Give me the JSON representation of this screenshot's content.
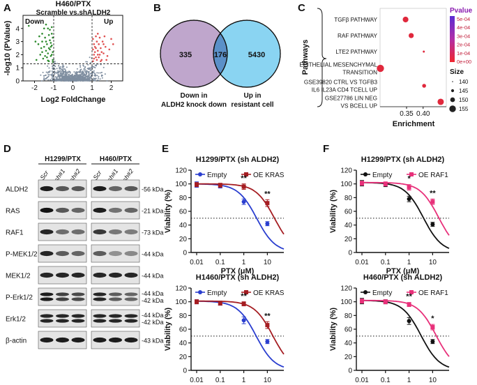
{
  "panel_labels": [
    "A",
    "B",
    "C",
    "D",
    "E",
    "F"
  ],
  "colors": {
    "volcano_down": "#2e8b2e",
    "volcano_up": "#e05050",
    "volcano_ns": "#7f8ea0",
    "venn_left": "#bfa6cc",
    "venn_right": "#8ad4f2",
    "venn_overlap": "#5b90c8",
    "empty_blue": "#2a3ecf",
    "oe_kras": "#a51d22",
    "empty_black": "#111111",
    "oe_raf1": "#e8307a"
  },
  "chart_data": [
    {
      "id": "A",
      "type": "scatter",
      "title": "H460/PTX",
      "subtitle": "Scramble vs.shALDH2",
      "xlabel": "Log2 FoldChange",
      "ylabel": "-log10 (PValue)",
      "xlim": [
        -2.6,
        2.6
      ],
      "ylim": [
        0,
        5
      ],
      "xticks": [
        "-2",
        "-1",
        "0",
        "1",
        "2"
      ],
      "yticks": [
        "0",
        "1",
        "2",
        "3",
        "4"
      ],
      "region_labels": {
        "down": "Down",
        "up": "Up"
      },
      "thresholds": {
        "fc": [
          -1,
          1
        ],
        "p": 1.3
      },
      "down_points": [
        [
          -1.05,
          1.6
        ],
        [
          -1.1,
          2.0
        ],
        [
          -1.2,
          2.4
        ],
        [
          -1.3,
          2.1
        ],
        [
          -1.15,
          2.9
        ],
        [
          -1.4,
          3.0
        ],
        [
          -1.25,
          3.5
        ],
        [
          -1.5,
          2.6
        ],
        [
          -1.35,
          1.8
        ],
        [
          -1.6,
          2.2
        ],
        [
          -1.2,
          3.9
        ],
        [
          -1.1,
          2.7
        ],
        [
          -1.45,
          3.3
        ],
        [
          -1.3,
          4.0
        ],
        [
          -1.6,
          3.6
        ],
        [
          -1.05,
          3.3
        ],
        [
          -1.7,
          2.0
        ],
        [
          -1.25,
          1.5
        ],
        [
          -1.55,
          1.7
        ],
        [
          -1.4,
          4.3
        ],
        [
          -1.15,
          1.9
        ],
        [
          -1.8,
          2.8
        ],
        [
          -1.35,
          2.8
        ],
        [
          -1.1,
          4.1
        ],
        [
          -1.95,
          3.0
        ],
        [
          -1.5,
          4.0
        ],
        [
          -1.2,
          3.1
        ],
        [
          -1.05,
          2.2
        ],
        [
          -1.3,
          1.55
        ],
        [
          -1.65,
          2.5
        ],
        [
          -1.1,
          3.6
        ],
        [
          -1.45,
          1.9
        ],
        [
          -1.75,
          3.4
        ],
        [
          -1.25,
          2.5
        ],
        [
          -2.3,
          4.2
        ],
        [
          -1.9,
          1.6
        ],
        [
          -1.05,
          1.45
        ],
        [
          -1.4,
          2.3
        ],
        [
          -1.15,
          2.6
        ],
        [
          -1.6,
          3.0
        ]
      ],
      "up_points": [
        [
          1.05,
          1.5
        ],
        [
          1.1,
          2.0
        ],
        [
          1.2,
          1.8
        ],
        [
          1.15,
          2.6
        ],
        [
          1.3,
          2.3
        ],
        [
          1.25,
          3.0
        ],
        [
          1.4,
          2.0
        ],
        [
          1.35,
          2.8
        ],
        [
          1.5,
          1.6
        ],
        [
          1.2,
          3.4
        ],
        [
          1.45,
          2.5
        ],
        [
          1.6,
          2.1
        ],
        [
          1.1,
          2.8
        ],
        [
          1.3,
          3.6
        ],
        [
          1.55,
          3.0
        ],
        [
          1.05,
          3.2
        ],
        [
          1.7,
          2.6
        ],
        [
          1.25,
          1.6
        ],
        [
          1.4,
          3.3
        ],
        [
          1.8,
          1.9
        ],
        [
          1.15,
          2.2
        ],
        [
          1.35,
          1.8
        ],
        [
          1.65,
          3.4
        ],
        [
          1.9,
          2.4
        ],
        [
          1.5,
          2.2
        ],
        [
          1.1,
          1.7
        ],
        [
          1.3,
          2.0
        ],
        [
          2.1,
          2.8
        ],
        [
          1.75,
          1.6
        ],
        [
          1.2,
          2.5
        ],
        [
          1.45,
          1.5
        ],
        [
          1.05,
          2.4
        ],
        [
          1.6,
          2.8
        ],
        [
          2.0,
          3.2
        ]
      ]
    },
    {
      "id": "B",
      "type": "venn",
      "sets": [
        {
          "label_line1": "Down in",
          "label_line2": "ALDH2 knock down",
          "only": 335
        },
        {
          "label_line1": "Up in",
          "label_line2": "resistant cell",
          "only": 5430
        }
      ],
      "overlap": 176
    },
    {
      "id": "C",
      "type": "scatter",
      "ylabel": "Pathways",
      "xlabel": "Enrichment",
      "xlim": [
        0.27,
        0.47
      ],
      "xticks": [
        0.35,
        0.4
      ],
      "xtick_labels": [
        "0.35",
        "0.40"
      ],
      "pathways": [
        {
          "label": [
            "TGFβ PATHWAY"
          ],
          "enrichment": 0.347,
          "pvalue": 1e-05,
          "size": 152
        },
        {
          "label": [
            "RAF PATHWAY"
          ],
          "enrichment": 0.364,
          "pvalue": 1e-05,
          "size": 150
        },
        {
          "label": [
            "LTE2 PATHWAY"
          ],
          "enrichment": 0.402,
          "pvalue": 1e-05,
          "size": 140
        },
        {
          "label": [
            "EPITHELIAL MESENCHYMAL",
            "TRANSITION"
          ],
          "enrichment": 0.271,
          "pvalue": 2e-05,
          "size": 157
        },
        {
          "label": [
            "GSE39820 CTRL VS TGFB3",
            "IL6 IL23A CD4 TCELL UP"
          ],
          "enrichment": 0.403,
          "pvalue": 1e-05,
          "size": 146
        },
        {
          "label": [
            "GSE27786 LIN NEG",
            "VS BCELL UP"
          ],
          "enrichment": 0.453,
          "pvalue": 2e-05,
          "size": 154
        }
      ],
      "legend_pvalue": {
        "title": "Pvalue",
        "labels": [
          "5e-04",
          "4e-04",
          "3e-04",
          "2e-04",
          "1e-04",
          "0e+00"
        ]
      },
      "legend_size": {
        "title": "Size",
        "values": [
          140,
          145,
          150,
          155
        ]
      }
    },
    {
      "id": "D",
      "type": "blot",
      "groups": [
        "H1299/PTX",
        "H460/PTX"
      ],
      "lanes": [
        "Scr",
        "sh#1",
        "sh#2"
      ],
      "rows": [
        {
          "name": "ALDH2",
          "markers": [
            "56 kDa"
          ],
          "left": [
            0.95,
            0.62,
            0.62
          ],
          "right": [
            0.95,
            0.55,
            0.62
          ]
        },
        {
          "name": "RAS",
          "markers": [
            "21 kDa"
          ],
          "left": [
            1.0,
            0.62,
            0.55
          ],
          "right": [
            0.95,
            0.48,
            0.55
          ]
        },
        {
          "name": "RAF1",
          "markers": [
            "73 kDa"
          ],
          "left": [
            0.9,
            0.5,
            0.5
          ],
          "right": [
            0.8,
            0.45,
            0.42
          ]
        },
        {
          "name": "P-MEK1/2",
          "markers": [
            "44 kDa"
          ],
          "left": [
            0.9,
            0.6,
            0.55
          ],
          "right": [
            0.6,
            0.3,
            0.35
          ]
        },
        {
          "name": "MEK1/2",
          "markers": [
            "44 kDa"
          ],
          "left": [
            0.9,
            0.9,
            0.9
          ],
          "right": [
            0.9,
            0.9,
            0.9
          ]
        },
        {
          "name": "P-Erk1/2",
          "markers": [
            "44 kDa",
            "42 kDa"
          ],
          "left": [
            0.95,
            0.75,
            0.7
          ],
          "right": [
            0.9,
            0.6,
            0.55
          ],
          "double": true
        },
        {
          "name": "Erk1/2",
          "markers": [
            "44 kDa",
            "42 kDa"
          ],
          "left": [
            0.9,
            0.9,
            0.9
          ],
          "right": [
            0.9,
            0.9,
            0.9
          ],
          "double": true
        },
        {
          "name": "β-actin",
          "markers": [
            "43 kDa"
          ],
          "left": [
            0.95,
            0.95,
            0.95
          ],
          "right": [
            0.95,
            0.95,
            0.95
          ]
        }
      ]
    },
    {
      "id": "E-top",
      "type": "line",
      "title": "H1299/PTX (sh ALDH2)",
      "xlabel": "PTX (μM)",
      "ylabel": "Viability (%)",
      "x": [
        0.01,
        0.1,
        1,
        10
      ],
      "xtick_labels": [
        "0.01",
        "0.1",
        "1",
        "10"
      ],
      "ylim": [
        0,
        120
      ],
      "yticks": [
        "0",
        "20",
        "40",
        "60",
        "80",
        "100",
        "120"
      ],
      "reference_y": 50,
      "series": [
        {
          "name": "Empty",
          "color": "#2a3ecf",
          "values": [
            99,
            97,
            74,
            42
          ],
          "err": [
            4,
            3,
            4,
            3
          ],
          "ec50": 3.5
        },
        {
          "name": "OE KRAS",
          "color": "#a51d22",
          "values": [
            99,
            98,
            96,
            72
          ],
          "err": [
            3,
            3,
            4,
            5
          ],
          "ec50": 20
        }
      ],
      "significance": [
        {
          "x": 1,
          "y": 105,
          "label": "**"
        },
        {
          "x": 10,
          "y": 82,
          "label": "**"
        }
      ]
    },
    {
      "id": "E-bottom",
      "type": "line",
      "title": "H1460/PTX (sh ALDH2)",
      "xlabel": "PTX (μM)",
      "ylabel": "Viability (%)",
      "x": [
        0.01,
        0.1,
        1,
        10
      ],
      "xtick_labels": [
        "0.01",
        "0.1",
        "1",
        "10"
      ],
      "ylim": [
        0,
        120
      ],
      "yticks": [
        "0",
        "20",
        "40",
        "60",
        "80",
        "100",
        "120"
      ],
      "reference_y": 50,
      "series": [
        {
          "name": "Empty",
          "color": "#2a3ecf",
          "values": [
            100,
            98,
            73,
            42
          ],
          "err": [
            3,
            3,
            5,
            3
          ],
          "ec50": 3.3
        },
        {
          "name": "OE KRAS",
          "color": "#a51d22",
          "values": [
            100,
            98,
            97,
            66
          ],
          "err": [
            3,
            3,
            3,
            5
          ],
          "ec50": 17
        }
      ],
      "significance": [
        {
          "x": 1,
          "y": 105,
          "label": "**"
        },
        {
          "x": 10,
          "y": 76,
          "label": "**"
        }
      ]
    },
    {
      "id": "F-top",
      "type": "line",
      "title": "H1299/PTX (sh ALDH2)",
      "xlabel": "PTX (μM)",
      "ylabel": "Viability (%)",
      "x": [
        0.01,
        0.1,
        1,
        10
      ],
      "xtick_labels": [
        "0.01",
        "0.1",
        "1",
        "10"
      ],
      "ylim": [
        0,
        120
      ],
      "yticks": [
        "0",
        "20",
        "40",
        "60",
        "80",
        "100",
        "120"
      ],
      "reference_y": 50,
      "series": [
        {
          "name": "Empty",
          "color": "#111111",
          "values": [
            101,
            99,
            78,
            41
          ],
          "err": [
            4,
            3,
            4,
            3
          ],
          "ec50": 4.0
        },
        {
          "name": "OE RAF1",
          "color": "#e8307a",
          "values": [
            101,
            100,
            95,
            74
          ],
          "err": [
            3,
            3,
            4,
            4
          ],
          "ec50": 18
        }
      ],
      "significance": [
        {
          "x": 1,
          "y": 104,
          "label": "*"
        },
        {
          "x": 10,
          "y": 83,
          "label": "**"
        }
      ]
    },
    {
      "id": "F-bottom",
      "type": "line",
      "title": "H460/PTX (sh ALDH2)",
      "xlabel": "PTX (μM)",
      "ylabel": "Viability (%)",
      "x": [
        0.01,
        0.1,
        1,
        10
      ],
      "xtick_labels": [
        "0.01",
        "0.1",
        "1",
        "10"
      ],
      "ylim": [
        0,
        120
      ],
      "yticks": [
        "0",
        "20",
        "40",
        "60",
        "80",
        "100",
        "120"
      ],
      "reference_y": 50,
      "series": [
        {
          "name": "Empty",
          "color": "#111111",
          "values": [
            101,
            100,
            72,
            42
          ],
          "err": [
            4,
            3,
            5,
            3
          ],
          "ec50": 3.2
        },
        {
          "name": "OE RAF1",
          "color": "#e8307a",
          "values": [
            101,
            100,
            96,
            63
          ],
          "err": [
            3,
            3,
            3,
            4
          ],
          "ec50": 14
        }
      ],
      "significance": [
        {
          "x": 1,
          "y": 104,
          "label": "**"
        },
        {
          "x": 10,
          "y": 72,
          "label": "*"
        }
      ]
    }
  ]
}
